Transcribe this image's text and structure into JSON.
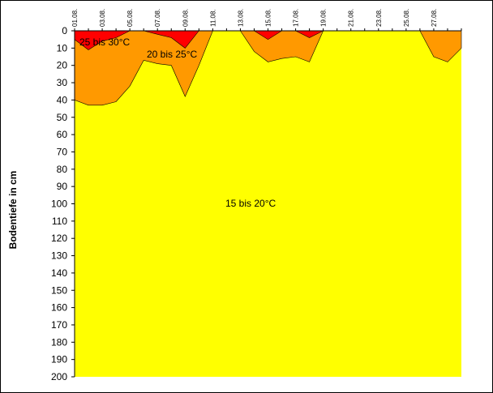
{
  "chart_data": {
    "type": "area",
    "title": "",
    "ylabel": "Bodentiefe in cm",
    "xlabel": "",
    "x_tick_labels": [
      "01.08.",
      "03.08.",
      "05.08.",
      "07.08.",
      "09.08.",
      "11.08.",
      "13.08.",
      "15.08.",
      "17.08.",
      "19.08.",
      "21.08.",
      "23.08.",
      "25.08.",
      "27.08."
    ],
    "x_day_range": [
      "01.08.",
      "29.08."
    ],
    "ylim": [
      200,
      0
    ],
    "y_ticks": [
      0,
      10,
      20,
      30,
      40,
      50,
      60,
      70,
      80,
      90,
      100,
      110,
      120,
      130,
      140,
      150,
      160,
      170,
      180,
      190,
      200
    ],
    "series": [
      {
        "name": "15 bis 20°C",
        "color": "#FFFF00",
        "x": [
          "01.08.",
          "29.08."
        ],
        "upper_depth": [
          0,
          0
        ],
        "lower_depth": [
          200,
          200
        ]
      },
      {
        "name": "20 bis 25°C",
        "color": "#FF9900",
        "x": [
          "01.08.",
          "02.08.",
          "03.08.",
          "04.08.",
          "05.08.",
          "06.08.",
          "07.08.",
          "08.08.",
          "09.08.",
          "10.08.",
          "11.08.",
          "12.08.",
          "13.08.",
          "14.08.",
          "15.08.",
          "16.08.",
          "17.08.",
          "18.08.",
          "19.08.",
          "20.08.",
          "21.08.",
          "22.08.",
          "23.08.",
          "24.08.",
          "25.08.",
          "26.08.",
          "27.08.",
          "28.08.",
          "29.08."
        ],
        "lower_depth": [
          40,
          43,
          43,
          41,
          32,
          17,
          19,
          20,
          38,
          20,
          0,
          0,
          0,
          12,
          18,
          16,
          15,
          18,
          0,
          0,
          0,
          0,
          0,
          0,
          0,
          0,
          15,
          18,
          10
        ]
      },
      {
        "name": "25 bis 30°C",
        "color": "#FF0000",
        "x": [
          "01.08.",
          "02.08.",
          "03.08.",
          "04.08.",
          "05.08.",
          "06.08.",
          "07.08.",
          "08.08.",
          "09.08.",
          "10.08.",
          "11.08.",
          "12.08.",
          "13.08.",
          "14.08.",
          "15.08.",
          "16.08.",
          "17.08.",
          "18.08.",
          "19.08.",
          "20.08.",
          "21.08.",
          "22.08.",
          "23.08.",
          "24.08.",
          "25.08.",
          "26.08.",
          "27.08.",
          "28.08.",
          "29.08."
        ],
        "lower_depth": [
          5,
          11,
          6,
          4,
          0,
          0,
          2,
          4,
          10,
          0,
          0,
          0,
          0,
          0,
          5,
          0,
          0,
          4,
          0,
          0,
          0,
          0,
          0,
          0,
          0,
          0,
          0,
          0,
          0
        ]
      }
    ],
    "annotations": [
      "25 bis 30°C",
      "20 bis 25°C",
      "15 bis 20°C"
    ],
    "grid": false,
    "legend": "none"
  }
}
